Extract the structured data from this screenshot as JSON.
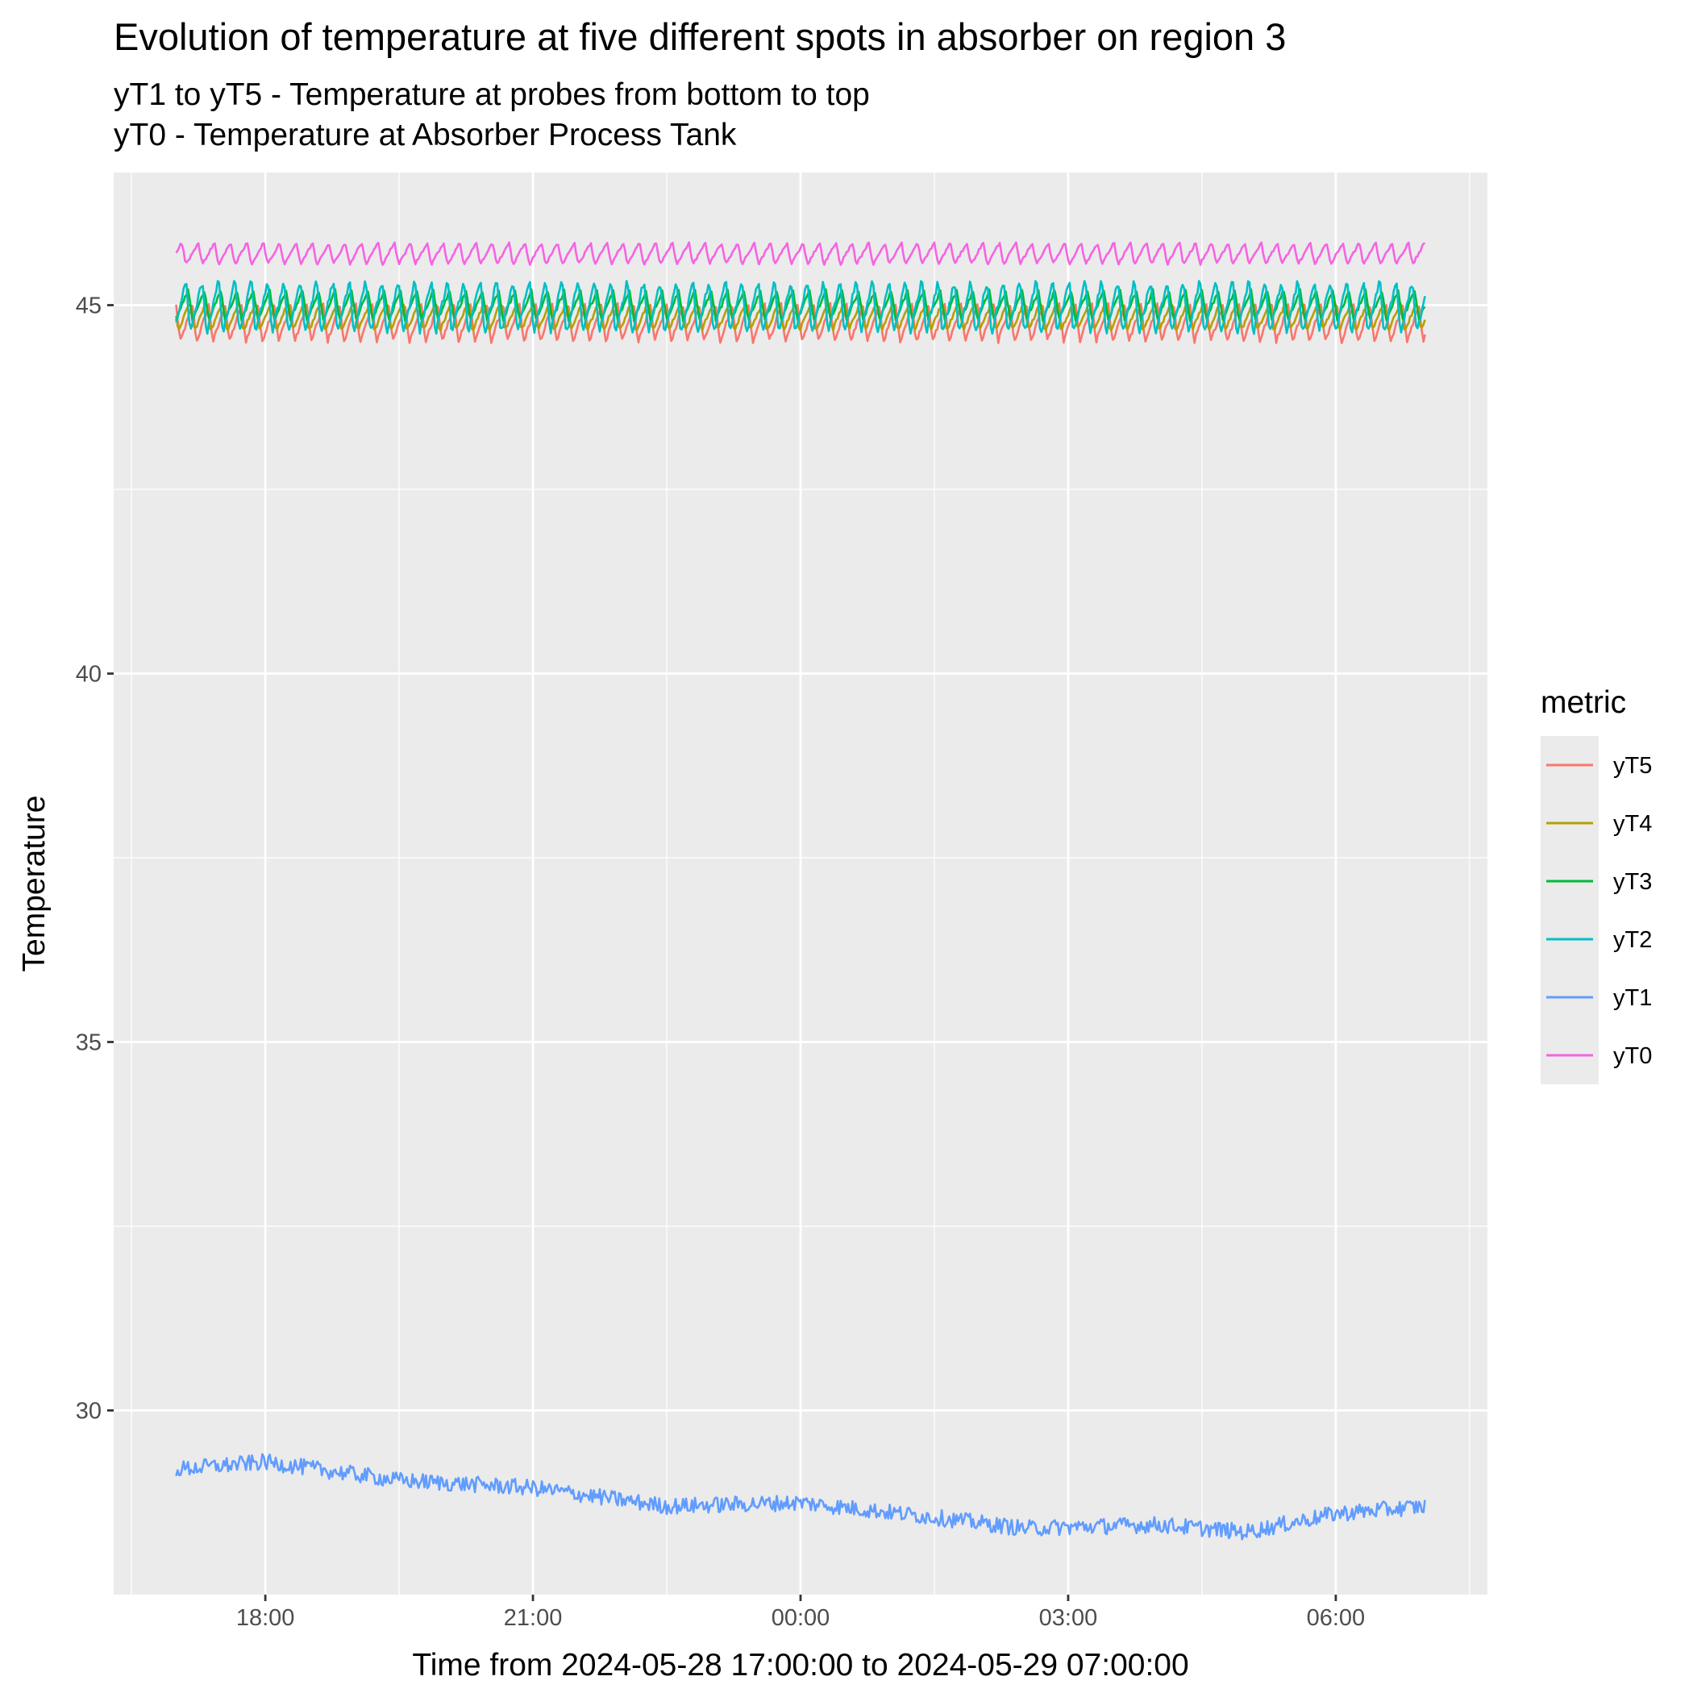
{
  "chart_data": {
    "type": "line",
    "title": "Evolution of temperature at five different spots in absorber on region 3",
    "subtitle_lines": [
      "yT1 to yT5 - Temperature at probes from bottom to top",
      "yT0 - Temperature at Absorber Process Tank"
    ],
    "xlabel": "Time from 2024-05-28 17:00:00 to 2024-05-29 07:00:00",
    "ylabel": "Temperature",
    "x_start": "2024-05-28 17:00:00",
    "x_end": "2024-05-29 07:00:00",
    "xlim": [
      "2024-05-28 16:18:00",
      "2024-05-29 07:42:00"
    ],
    "x_ticks": [
      {
        "at": "2024-05-28 18:00:00",
        "label": "18:00"
      },
      {
        "at": "2024-05-28 21:00:00",
        "label": "21:00"
      },
      {
        "at": "2024-05-29 00:00:00",
        "label": "00:00"
      },
      {
        "at": "2024-05-29 03:00:00",
        "label": "03:00"
      },
      {
        "at": "2024-05-29 06:00:00",
        "label": "06:00"
      }
    ],
    "ylim": [
      27.5,
      46.8
    ],
    "y_ticks": [
      30,
      35,
      40,
      45
    ],
    "grid": true,
    "legend": {
      "title": "metric",
      "position": "right"
    },
    "series": [
      {
        "name": "yT5",
        "color": "#F8766D",
        "profile": "sawtooth",
        "high": 45.0,
        "low": 44.5,
        "period_min": 11
      },
      {
        "name": "yT4",
        "color": "#B79F00",
        "profile": "sawtooth",
        "high": 45.05,
        "low": 44.65,
        "period_min": 11
      },
      {
        "name": "yT3",
        "color": "#00BA38",
        "profile": "sawtooth",
        "high": 45.2,
        "low": 44.8,
        "period_min": 11
      },
      {
        "name": "yT2",
        "color": "#00BFC4",
        "profile": "sawtooth",
        "high": 45.35,
        "low": 44.6,
        "period_min": 11
      },
      {
        "name": "yT1",
        "color": "#619CFF",
        "profile": "drift",
        "x": [
          "2024-05-28 17:00:00",
          "2024-05-28 18:00:00",
          "2024-05-28 19:30:00",
          "2024-05-28 21:00:00",
          "2024-05-28 22:30:00",
          "2024-05-29 00:00:00",
          "2024-05-29 01:30:00",
          "2024-05-29 02:30:00",
          "2024-05-29 04:00:00",
          "2024-05-29 05:00:00",
          "2024-05-29 06:00:00",
          "2024-05-29 07:00:00"
        ],
        "y": [
          29.2,
          29.3,
          29.05,
          28.95,
          28.7,
          28.75,
          28.55,
          28.4,
          28.45,
          28.35,
          28.6,
          28.7
        ]
      },
      {
        "name": "yT0",
        "color": "#F564E3",
        "profile": "sawtooth",
        "high": 45.85,
        "low": 45.55,
        "period_min": 11
      }
    ]
  }
}
